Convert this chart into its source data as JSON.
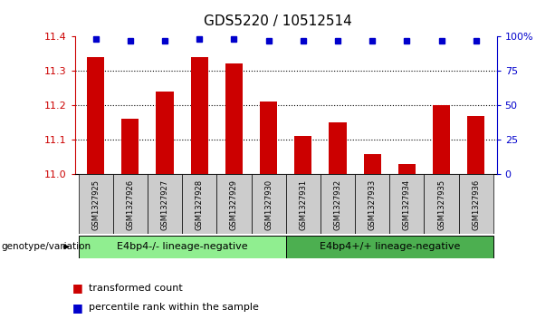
{
  "title": "GDS5220 / 10512514",
  "samples": [
    "GSM1327925",
    "GSM1327926",
    "GSM1327927",
    "GSM1327928",
    "GSM1327929",
    "GSM1327930",
    "GSM1327931",
    "GSM1327932",
    "GSM1327933",
    "GSM1327934",
    "GSM1327935",
    "GSM1327936"
  ],
  "bar_values": [
    11.34,
    11.16,
    11.24,
    11.34,
    11.32,
    11.21,
    11.11,
    11.15,
    11.06,
    11.03,
    11.2,
    11.17
  ],
  "percentile_values": [
    98,
    97,
    97,
    98,
    98,
    97,
    97,
    97,
    97,
    97,
    97,
    97
  ],
  "bar_color": "#cc0000",
  "percentile_color": "#0000cc",
  "ylim_left": [
    11.0,
    11.4
  ],
  "ylim_right": [
    0,
    100
  ],
  "yticks_left": [
    11.0,
    11.1,
    11.2,
    11.3,
    11.4
  ],
  "yticks_right": [
    0,
    25,
    50,
    75,
    100
  ],
  "ytick_labels_right": [
    "0",
    "25",
    "50",
    "75",
    "100%"
  ],
  "grid_values": [
    11.1,
    11.2,
    11.3
  ],
  "group1_label": "E4bp4-/- lineage-negative",
  "group2_label": "E4bp4+/+ lineage-negative",
  "group1_color": "#90ee90",
  "group2_color": "#4caf50",
  "group1_indices": [
    0,
    1,
    2,
    3,
    4,
    5
  ],
  "group2_indices": [
    6,
    7,
    8,
    9,
    10,
    11
  ],
  "genotype_label": "genotype/variation",
  "legend_bar_label": "transformed count",
  "legend_dot_label": "percentile rank within the sample",
  "bar_width": 0.5,
  "bar_color_red": "#cc0000",
  "pct_color_blue": "#0000cc",
  "sample_bg_color": "#cccccc",
  "background_color": "#ffffff",
  "title_fontsize": 11,
  "tick_fontsize": 8,
  "sample_fontsize": 6,
  "group_fontsize": 8,
  "legend_fontsize": 8
}
